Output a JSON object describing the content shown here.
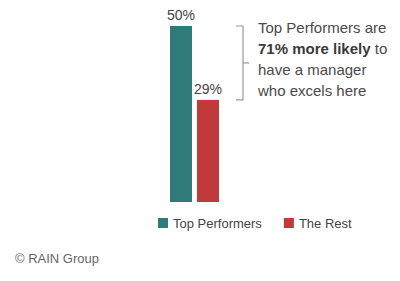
{
  "chart_data": {
    "type": "bar",
    "categories": [
      null
    ],
    "series": [
      {
        "name": "Top Performers",
        "color": "#2f7b7c",
        "values": [
          50
        ],
        "value_labels": [
          "50%"
        ]
      },
      {
        "name": "The Rest",
        "color": "#c2393b",
        "values": [
          29
        ],
        "value_labels": [
          "29%"
        ]
      }
    ],
    "data_labels": true,
    "tick_labels": false,
    "legend": "bottom",
    "annotation": {
      "text": "Top Performers are",
      "emphasis": "71% more likely",
      "text_end": "to have a manager who excels here"
    },
    "source": "© RAIN Group"
  }
}
